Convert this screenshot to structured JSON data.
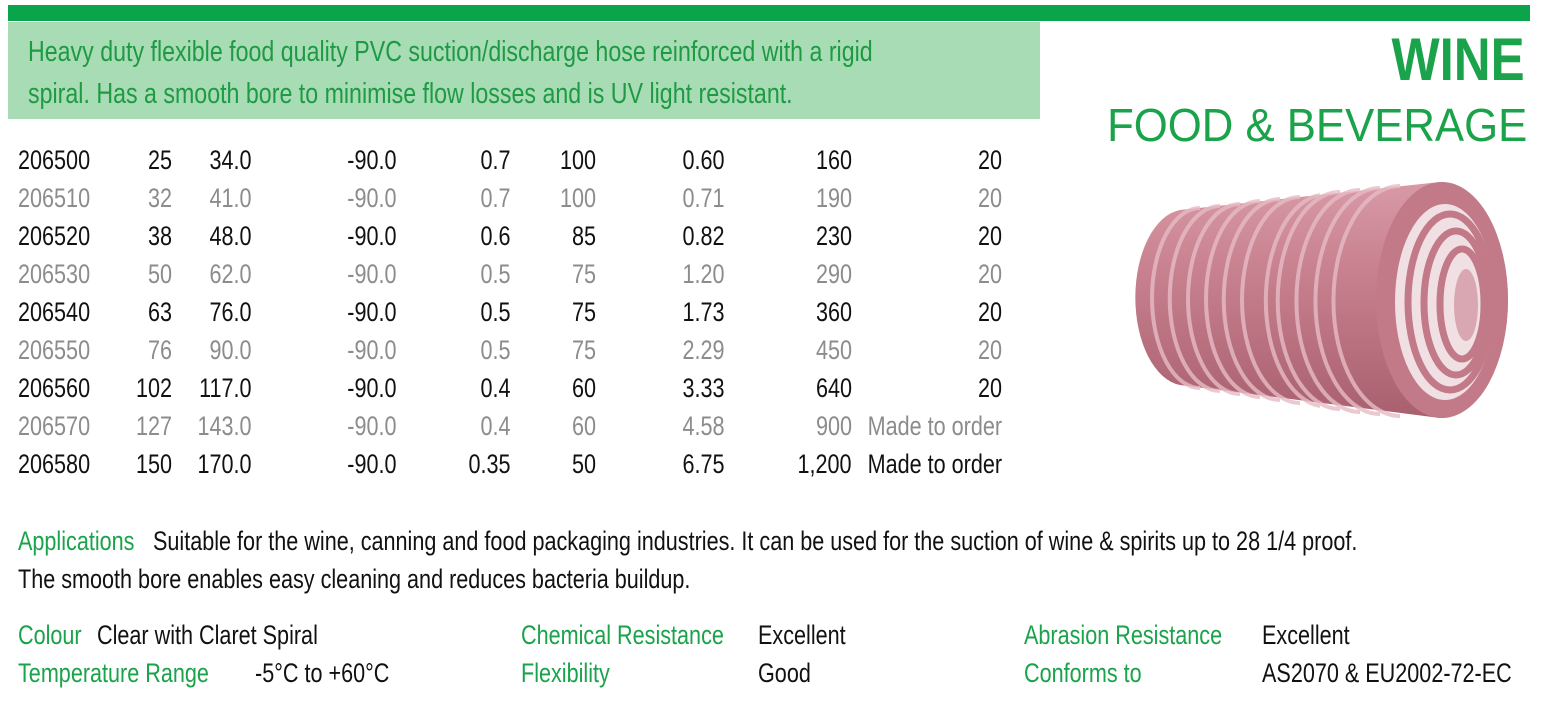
{
  "header": {
    "description": [
      "Heavy duty flexible food quality PVC suction/discharge hose reinforced with a rigid",
      "spiral. Has a smooth bore to minimise flow losses and is UV light resistant."
    ],
    "title": "WINE",
    "subtitle": "FOOD & BEVERAGE"
  },
  "table": {
    "rows": [
      [
        "206500",
        "25",
        "34.0",
        "-90.0",
        "0.7",
        "100",
        "0.60",
        "160",
        "20"
      ],
      [
        "206510",
        "32",
        "41.0",
        "-90.0",
        "0.7",
        "100",
        "0.71",
        "190",
        "20"
      ],
      [
        "206520",
        "38",
        "48.0",
        "-90.0",
        "0.6",
        "85",
        "0.82",
        "230",
        "20"
      ],
      [
        "206530",
        "50",
        "62.0",
        "-90.0",
        "0.5",
        "75",
        "1.20",
        "290",
        "20"
      ],
      [
        "206540",
        "63",
        "76.0",
        "-90.0",
        "0.5",
        "75",
        "1.73",
        "360",
        "20"
      ],
      [
        "206550",
        "76",
        "90.0",
        "-90.0",
        "0.5",
        "75",
        "2.29",
        "450",
        "20"
      ],
      [
        "206560",
        "102",
        "117.0",
        "-90.0",
        "0.4",
        "60",
        "3.33",
        "640",
        "20"
      ],
      [
        "206570",
        "127",
        "143.0",
        "-90.0",
        "0.4",
        "60",
        "4.58",
        "900",
        "Made to order"
      ],
      [
        "206580",
        "150",
        "170.0",
        "-90.0",
        "0.35",
        "50",
        "6.75",
        "1,200",
        "Made to order"
      ]
    ]
  },
  "applications": {
    "label": "Applications",
    "lines": [
      "Suitable for the wine, canning and food packaging industries. It can be used for the suction of wine & spirits up to 28 1/4 proof.",
      "The smooth bore enables easy cleaning and reduces bacteria buildup."
    ]
  },
  "properties": [
    {
      "label": "Colour",
      "value": "Clear with Claret Spiral"
    },
    {
      "label": "Temperature Range",
      "value": "-5°C to +60°C"
    },
    {
      "label": "Chemical Resistance",
      "value": "Excellent"
    },
    {
      "label": "Flexibility",
      "value": "Good"
    },
    {
      "label": "Abrasion Resistance",
      "value": "Excellent"
    },
    {
      "label": "Conforms to",
      "value": "AS2070 & EU2002-72-EC"
    }
  ]
}
